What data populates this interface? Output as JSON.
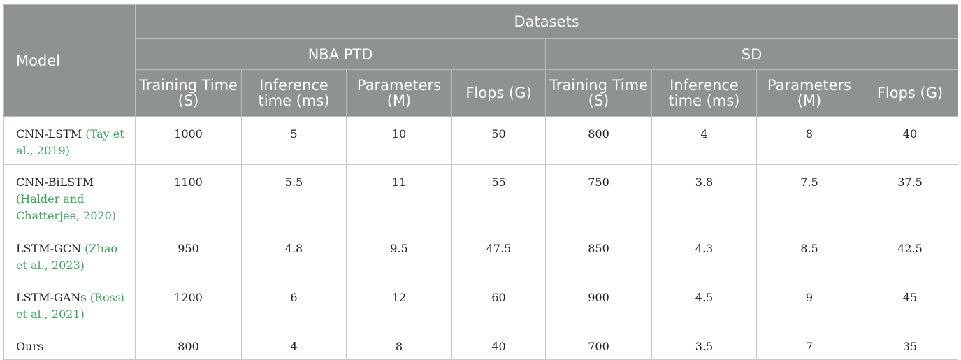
{
  "header": {
    "model": "Model",
    "datasets": "Datasets",
    "groups": [
      "NBA PTD",
      "SD"
    ],
    "columns": [
      "Training Time (S)",
      "Inference time (ms)",
      "Parameters (M)",
      "Flops (G)",
      "Training Time (S)",
      "Inference time (ms)",
      "Parameters (M)",
      "Flops (G)"
    ]
  },
  "rows": [
    {
      "model": "CNN-LSTM",
      "cite": "(Tay et al., 2019)",
      "values": [
        "1000",
        "5",
        "10",
        "50",
        "800",
        "4",
        "8",
        "40"
      ]
    },
    {
      "model": "CNN-BiLSTM",
      "cite": "(Halder and Chatterjee, 2020)",
      "values": [
        "1100",
        "5.5",
        "11",
        "55",
        "750",
        "3.8",
        "7.5",
        "37.5"
      ]
    },
    {
      "model": "LSTM-GCN",
      "cite": "(Zhao et al., 2023)",
      "values": [
        "950",
        "4.8",
        "9.5",
        "47.5",
        "850",
        "4.3",
        "8.5",
        "42.5"
      ]
    },
    {
      "model": "LSTM-GANs",
      "cite": "(Rossi et al., 2021)",
      "values": [
        "1200",
        "6",
        "12",
        "60",
        "900",
        "4.5",
        "9",
        "45"
      ]
    },
    {
      "model": "Ours",
      "cite": "",
      "values": [
        "800",
        "4",
        "8",
        "40",
        "700",
        "3.5",
        "7",
        "35"
      ]
    }
  ]
}
